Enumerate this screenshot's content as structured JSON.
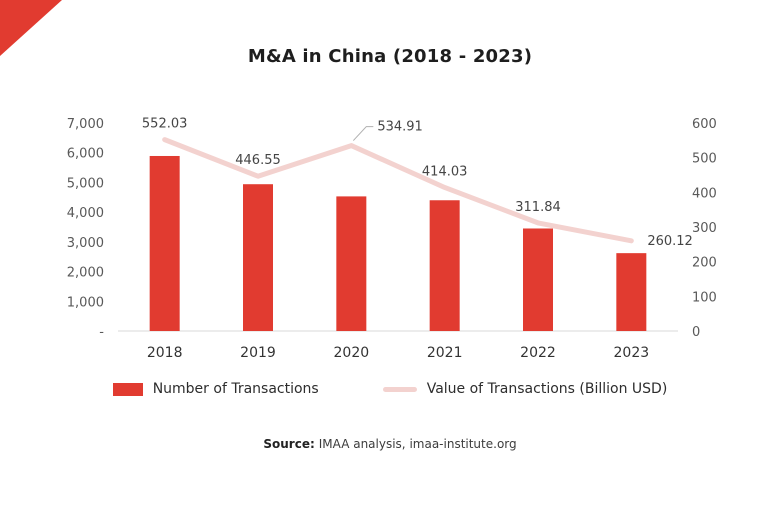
{
  "page": {
    "title": "M&A in China (2018 - 2023)"
  },
  "legend": {
    "bars": "Number of Transactions",
    "line": "Value of Transactions (Billion USD)"
  },
  "source": {
    "label": "Source:",
    "text": "IMAA analysis, imaa-institute.org"
  },
  "colors": {
    "bar": "#e13b30",
    "line": "#f3d2cf",
    "accent": "#e13b30",
    "axis_line": "#d9d9d9",
    "connector": "#b0b0b0"
  },
  "chart_data": {
    "type": "combo",
    "title": "M&A in China (2018 - 2023)",
    "categories": [
      "2018",
      "2019",
      "2020",
      "2021",
      "2022",
      "2023"
    ],
    "series": [
      {
        "name": "Number of Transactions",
        "type": "bar",
        "axis": "left",
        "values": [
          5890,
          4940,
          4530,
          4400,
          3450,
          2620
        ]
      },
      {
        "name": "Value of Transactions (Billion USD)",
        "type": "line",
        "axis": "right",
        "values": [
          552.03,
          446.55,
          534.91,
          414.03,
          311.84,
          260.12
        ],
        "labels": [
          "552.03",
          "446.55",
          "534.91",
          "414.03",
          "311.84",
          "260.12"
        ]
      }
    ],
    "left_axis": {
      "min": 0,
      "max": 7000,
      "ticks": [
        7000,
        6000,
        5000,
        4000,
        3000,
        2000,
        1000,
        0
      ],
      "tick_labels": [
        "7,000",
        "6,000",
        "5,000",
        "4,000",
        "3,000",
        "2,000",
        "1,000",
        "-"
      ]
    },
    "right_axis": {
      "min": 0,
      "max": 600,
      "ticks": [
        600,
        500,
        400,
        300,
        200,
        100,
        0
      ],
      "tick_labels": [
        "600",
        "500",
        "400",
        "300",
        "200",
        "100",
        "0"
      ]
    },
    "grid": false,
    "legend_position": "bottom"
  }
}
